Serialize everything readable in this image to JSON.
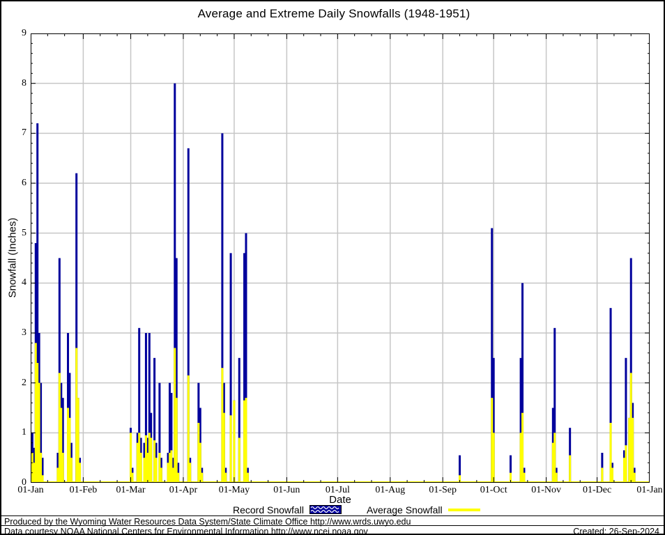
{
  "title": "Average and Extreme Daily Snowfalls (1948-1951)",
  "footer": {
    "line1": "Produced by the Wyoming Water Resources Data System/State Climate Office http://www.wrds.uwyo.edu",
    "line2": "Data courtesy NOAA National Centers for Environmental Information http://www.ncei.noaa.gov",
    "created": "Created: 26-Sep-2024"
  },
  "chart_data": {
    "type": "bar",
    "title": "Average and Extreme Daily Snowfalls (1948-1951)",
    "xlabel": "Date",
    "ylabel": "Snowfall (Inches)",
    "ylim": [
      0,
      9
    ],
    "xlim_days": [
      1,
      366
    ],
    "grid": true,
    "grid_color": "#c6c6c6",
    "legend_position": "bottom",
    "y_tick_labels": [
      "0",
      "1",
      "2",
      "3",
      "4",
      "5",
      "6",
      "7",
      "8",
      "9"
    ],
    "x_tick_labels": [
      "01-Jan",
      "01-Feb",
      "01-Mar",
      "01-Apr",
      "01-May",
      "01-Jun",
      "01-Jul",
      "01-Aug",
      "01-Sep",
      "01-Oct",
      "01-Nov",
      "01-Dec",
      "01-Jan"
    ],
    "month_start_days": [
      1,
      32,
      60,
      91,
      121,
      152,
      182,
      213,
      244,
      274,
      305,
      335,
      366
    ],
    "series": [
      {
        "name": "Record Snowfall",
        "style": "bar",
        "color": "#00009c",
        "points": [
          [
            2,
            1.0
          ],
          [
            3,
            0.7
          ],
          [
            4,
            4.8
          ],
          [
            5,
            7.2
          ],
          [
            6,
            3.0
          ],
          [
            7,
            2.0
          ],
          [
            8,
            0.5
          ],
          [
            17,
            0.6
          ],
          [
            18,
            4.5
          ],
          [
            19,
            2.0
          ],
          [
            20,
            1.7
          ],
          [
            23,
            3.0
          ],
          [
            24,
            2.2
          ],
          [
            25,
            0.8
          ],
          [
            28,
            6.2
          ],
          [
            29,
            1.7
          ],
          [
            30,
            0.5
          ],
          [
            60,
            1.1
          ],
          [
            61,
            0.3
          ],
          [
            64,
            1.0
          ],
          [
            65,
            3.1
          ],
          [
            66,
            0.9
          ],
          [
            68,
            0.8
          ],
          [
            69,
            3.0
          ],
          [
            70,
            0.9
          ],
          [
            71,
            3.0
          ],
          [
            72,
            1.4
          ],
          [
            74,
            2.5
          ],
          [
            75,
            0.8
          ],
          [
            77,
            2.0
          ],
          [
            78,
            0.5
          ],
          [
            82,
            0.6
          ],
          [
            83,
            2.0
          ],
          [
            84,
            1.8
          ],
          [
            85,
            0.5
          ],
          [
            86,
            8.0
          ],
          [
            87,
            4.5
          ],
          [
            88,
            0.4
          ],
          [
            94,
            6.7
          ],
          [
            95,
            0.5
          ],
          [
            100,
            2.0
          ],
          [
            101,
            1.5
          ],
          [
            102,
            0.3
          ],
          [
            114,
            7.0
          ],
          [
            115,
            2.0
          ],
          [
            116,
            0.3
          ],
          [
            119,
            4.6
          ],
          [
            121,
            1.65
          ],
          [
            124,
            2.5
          ],
          [
            127,
            4.6
          ],
          [
            128,
            5.0
          ],
          [
            129,
            0.3
          ],
          [
            254,
            0.55
          ],
          [
            273,
            5.1
          ],
          [
            274,
            2.5
          ],
          [
            284,
            0.55
          ],
          [
            290,
            2.5
          ],
          [
            291,
            4.0
          ],
          [
            292,
            0.3
          ],
          [
            309,
            1.5
          ],
          [
            310,
            3.1
          ],
          [
            311,
            0.3
          ],
          [
            319,
            1.1
          ],
          [
            338,
            0.6
          ],
          [
            343,
            3.5
          ],
          [
            344,
            0.4
          ],
          [
            351,
            0.65
          ],
          [
            352,
            2.5
          ],
          [
            354,
            1.3
          ],
          [
            355,
            4.5
          ],
          [
            356,
            1.6
          ],
          [
            357,
            0.3
          ]
        ]
      },
      {
        "name": "Average Snowfall",
        "style": "line",
        "color": "#ffff00",
        "points": [
          [
            2,
            0.6
          ],
          [
            3,
            0.4
          ],
          [
            4,
            2.8
          ],
          [
            5,
            2.4
          ],
          [
            6,
            2.0
          ],
          [
            7,
            0.6
          ],
          [
            8,
            0.15
          ],
          [
            17,
            0.3
          ],
          [
            18,
            2.2
          ],
          [
            19,
            1.5
          ],
          [
            20,
            0.6
          ],
          [
            23,
            1.5
          ],
          [
            24,
            1.3
          ],
          [
            25,
            0.5
          ],
          [
            28,
            2.7
          ],
          [
            29,
            1.7
          ],
          [
            30,
            0.4
          ],
          [
            60,
            1.0
          ],
          [
            61,
            0.2
          ],
          [
            64,
            0.8
          ],
          [
            65,
            1.0
          ],
          [
            66,
            0.6
          ],
          [
            68,
            0.5
          ],
          [
            69,
            0.95
          ],
          [
            70,
            0.6
          ],
          [
            71,
            1.0
          ],
          [
            72,
            0.9
          ],
          [
            74,
            0.85
          ],
          [
            75,
            0.5
          ],
          [
            77,
            0.6
          ],
          [
            78,
            0.3
          ],
          [
            82,
            0.4
          ],
          [
            83,
            0.6
          ],
          [
            84,
            0.65
          ],
          [
            85,
            0.3
          ],
          [
            86,
            2.7
          ],
          [
            87,
            1.7
          ],
          [
            88,
            0.2
          ],
          [
            94,
            2.15
          ],
          [
            95,
            0.4
          ],
          [
            100,
            1.2
          ],
          [
            101,
            0.8
          ],
          [
            102,
            0.2
          ],
          [
            114,
            2.3
          ],
          [
            115,
            1.4
          ],
          [
            116,
            0.2
          ],
          [
            119,
            1.35
          ],
          [
            121,
            1.65
          ],
          [
            124,
            0.9
          ],
          [
            127,
            1.65
          ],
          [
            128,
            1.7
          ],
          [
            129,
            0.2
          ],
          [
            254,
            0.15
          ],
          [
            273,
            1.7
          ],
          [
            274,
            1.0
          ],
          [
            284,
            0.2
          ],
          [
            290,
            1.0
          ],
          [
            291,
            1.4
          ],
          [
            292,
            0.2
          ],
          [
            309,
            0.8
          ],
          [
            310,
            1.0
          ],
          [
            311,
            0.2
          ],
          [
            319,
            0.55
          ],
          [
            338,
            0.3
          ],
          [
            343,
            1.2
          ],
          [
            344,
            0.3
          ],
          [
            351,
            0.5
          ],
          [
            352,
            0.75
          ],
          [
            354,
            1.3
          ],
          [
            355,
            2.2
          ],
          [
            356,
            1.3
          ],
          [
            357,
            0.2
          ]
        ]
      }
    ]
  }
}
